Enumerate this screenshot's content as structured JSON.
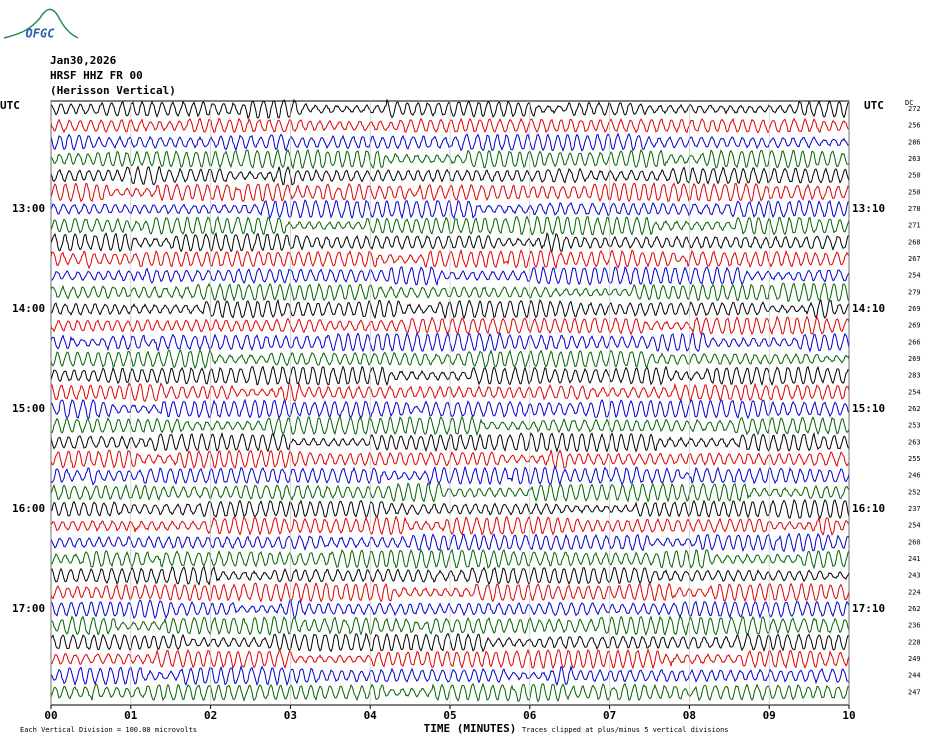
{
  "header": {
    "logo": "OFGC",
    "date": "Jan30,2026",
    "station": "HRSF HHZ FR 00",
    "location": "(Herisson Vertical)"
  },
  "left_labels": [
    "UTC",
    "13:00",
    "14:00",
    "15:00",
    "16:00",
    "17:00"
  ],
  "right_labels": [
    "UTC",
    "13:10",
    "14:10",
    "15:10",
    "16:10",
    "17:10"
  ],
  "dc_title": "DC",
  "dc_values": [
    272,
    256,
    286,
    263,
    250,
    250,
    278,
    271,
    268,
    267,
    254,
    279,
    269,
    269,
    266,
    269,
    283,
    254,
    262,
    253,
    263,
    255,
    246,
    252,
    237,
    254,
    260,
    241,
    243,
    224,
    262,
    236,
    228,
    249,
    244,
    247
  ],
  "x_axis": {
    "ticks": [
      "00",
      "01",
      "02",
      "03",
      "04",
      "05",
      "06",
      "07",
      "08",
      "09",
      "10"
    ],
    "title": "TIME (MINUTES)"
  },
  "footer": {
    "scale_note": "Each Vertical Division =  100.00 microvolts",
    "clip_note": "Traces clipped at plus/minus 5 vertical divisions"
  }
}
